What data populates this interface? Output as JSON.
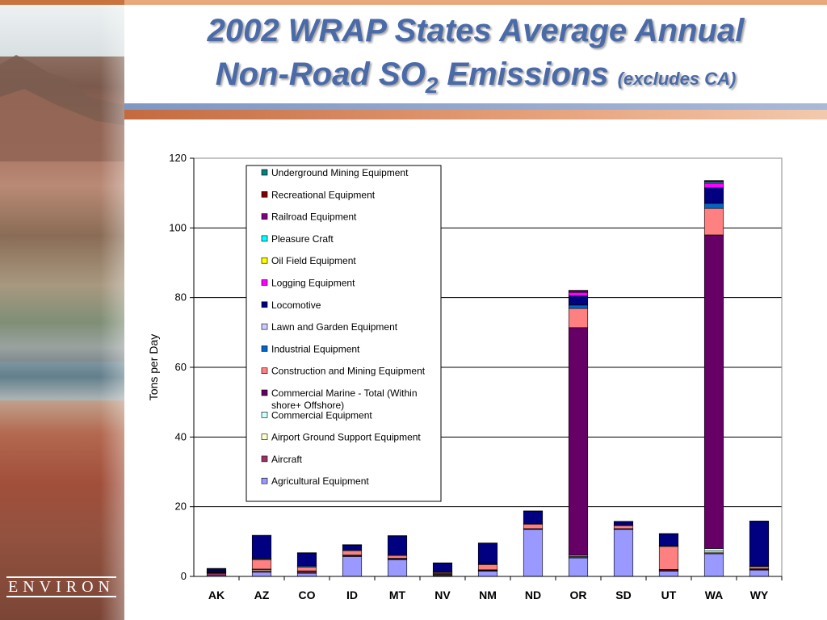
{
  "slide": {
    "title_line1": "2002 WRAP States Average Annual",
    "title_line2_main": "Non-Road SO",
    "title_line2_sub": "2",
    "title_line2_end": " Emissions ",
    "title_note": "(excludes CA)",
    "logo_text": "ENVIRON"
  },
  "chart_data": {
    "type": "bar",
    "stacked": true,
    "ylabel": "Tons per Day",
    "xlabel": "",
    "ylim": [
      0,
      120
    ],
    "yticks": [
      0,
      20,
      40,
      60,
      80,
      100,
      120
    ],
    "grid": true,
    "legend_position": "inside-left",
    "categories": [
      "AK",
      "AZ",
      "CO",
      "ID",
      "MT",
      "NV",
      "NM",
      "ND",
      "OR",
      "SD",
      "UT",
      "WA",
      "WY"
    ],
    "series": [
      {
        "name": "Agricultural Equipment",
        "color": "#9999ff",
        "values": [
          0.3,
          1.2,
          0.9,
          5.7,
          4.8,
          0.2,
          1.5,
          13.5,
          5.3,
          13.5,
          1.5,
          6.5,
          1.8
        ]
      },
      {
        "name": "Aircraft",
        "color": "#993366",
        "values": [
          0.6,
          0.4,
          0.3,
          0.2,
          0.2,
          0.3,
          0.2,
          0.1,
          0.3,
          0.1,
          0.3,
          0.3,
          0.2
        ]
      },
      {
        "name": "Airport Ground Support Equipment",
        "color": "#ffffcc",
        "values": [
          0.1,
          0.3,
          0.2,
          0.1,
          0.1,
          0.2,
          0.1,
          0.0,
          0.2,
          0.0,
          0.1,
          0.5,
          0.1
        ]
      },
      {
        "name": "Commercial Equipment",
        "color": "#ccffff",
        "values": [
          0.1,
          0.2,
          0.2,
          0.2,
          0.1,
          0.1,
          0.1,
          0.1,
          0.3,
          0.1,
          0.1,
          0.7,
          0.1
        ]
      },
      {
        "name": "Commercial Marine - Total (Within shore+ Offshore)",
        "color": "#660066",
        "values": [
          0.2,
          0.0,
          0.0,
          0.0,
          0.0,
          0.0,
          0.0,
          0.0,
          65.3,
          0.0,
          0.0,
          90.0,
          0.0
        ]
      },
      {
        "name": "Construction and Mining Equipment",
        "color": "#ff8080",
        "values": [
          0.2,
          2.7,
          1.1,
          1.2,
          0.8,
          0.3,
          1.5,
          1.3,
          5.5,
          0.9,
          6.6,
          7.6,
          0.6
        ]
      },
      {
        "name": "Industrial Equipment",
        "color": "#0066cc",
        "values": [
          0.1,
          0.3,
          0.3,
          0.2,
          0.2,
          0.2,
          0.2,
          0.1,
          0.8,
          0.1,
          0.2,
          1.3,
          0.2
        ]
      },
      {
        "name": "Lawn and Garden Equipment",
        "color": "#ccccff",
        "values": [
          0.0,
          0.1,
          0.1,
          0.0,
          0.0,
          0.1,
          0.1,
          0.0,
          0.2,
          0.0,
          0.1,
          0.2,
          0.0
        ]
      },
      {
        "name": "Locomotive",
        "color": "#000080",
        "values": [
          0.6,
          6.5,
          3.6,
          1.3,
          5.4,
          2.4,
          5.8,
          3.6,
          2.6,
          1.0,
          3.3,
          4.4,
          12.8
        ]
      },
      {
        "name": "Logging Equipment",
        "color": "#ff00ff",
        "values": [
          0.0,
          0.0,
          0.0,
          0.1,
          0.0,
          0.0,
          0.0,
          0.0,
          1.0,
          0.0,
          0.0,
          1.3,
          0.0
        ]
      },
      {
        "name": "Oil Field Equipment",
        "color": "#ffff00",
        "values": [
          0.0,
          0.0,
          0.0,
          0.0,
          0.0,
          0.0,
          0.0,
          0.0,
          0.0,
          0.0,
          0.0,
          0.0,
          0.0
        ]
      },
      {
        "name": "Pleasure Craft",
        "color": "#00ffff",
        "values": [
          0.0,
          0.0,
          0.0,
          0.0,
          0.0,
          0.0,
          0.0,
          0.0,
          0.2,
          0.0,
          0.0,
          0.3,
          0.0
        ]
      },
      {
        "name": "Railroad Equipment",
        "color": "#800080",
        "values": [
          0.0,
          0.0,
          0.0,
          0.0,
          0.0,
          0.0,
          0.0,
          0.0,
          0.3,
          0.0,
          0.0,
          0.4,
          0.0
        ]
      },
      {
        "name": "Recreational Equipment",
        "color": "#800000",
        "values": [
          0.1,
          0.1,
          0.1,
          0.1,
          0.1,
          0.1,
          0.1,
          0.1,
          0.1,
          0.1,
          0.1,
          0.1,
          0.1
        ]
      },
      {
        "name": "Underground Mining Equipment",
        "color": "#008080",
        "values": [
          0.0,
          0.0,
          0.0,
          0.0,
          0.0,
          0.0,
          0.0,
          0.0,
          0.0,
          0.0,
          0.0,
          0.0,
          0.0
        ]
      }
    ]
  }
}
